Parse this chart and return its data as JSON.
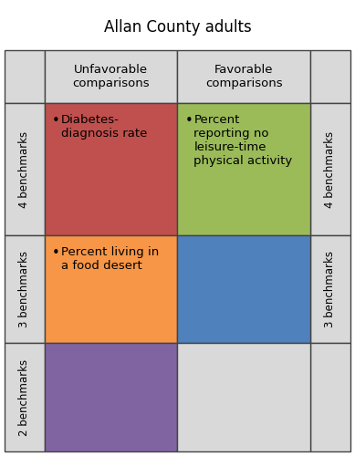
{
  "title": "Allan County adults",
  "col_headers": [
    "Unfavorable\ncomparisons",
    "Favorable\ncomparisons"
  ],
  "row_labels_left": [
    "4 benchmarks",
    "3 benchmarks",
    "2 benchmarks"
  ],
  "row_labels_right": [
    "4 benchmarks",
    "3 benchmarks"
  ],
  "cells": [
    {
      "row": 0,
      "col": 0,
      "color": "#c0504d",
      "text": "Diabetes-\ndiagnosis rate",
      "bullet": true
    },
    {
      "row": 0,
      "col": 1,
      "color": "#9bbb59",
      "text": "Percent\nreporting no\nleisure-time\nphysical activity",
      "bullet": true
    },
    {
      "row": 1,
      "col": 0,
      "color": "#f79646",
      "text": "Percent living in\na food desert",
      "bullet": true
    },
    {
      "row": 1,
      "col": 1,
      "color": "#4f81bd",
      "text": "",
      "bullet": false
    },
    {
      "row": 2,
      "col": 0,
      "color": "#8064a2",
      "text": "",
      "bullet": false
    },
    {
      "row": 2,
      "col": 1,
      "color": "#d9d9d9",
      "text": "",
      "bullet": false
    }
  ],
  "header_bg": "#d9d9d9",
  "side_bg": "#d9d9d9",
  "grid_color": "#444444",
  "title_fontsize": 12,
  "header_fontsize": 9.5,
  "cell_fontsize": 9.5,
  "side_label_fontsize": 8.5
}
